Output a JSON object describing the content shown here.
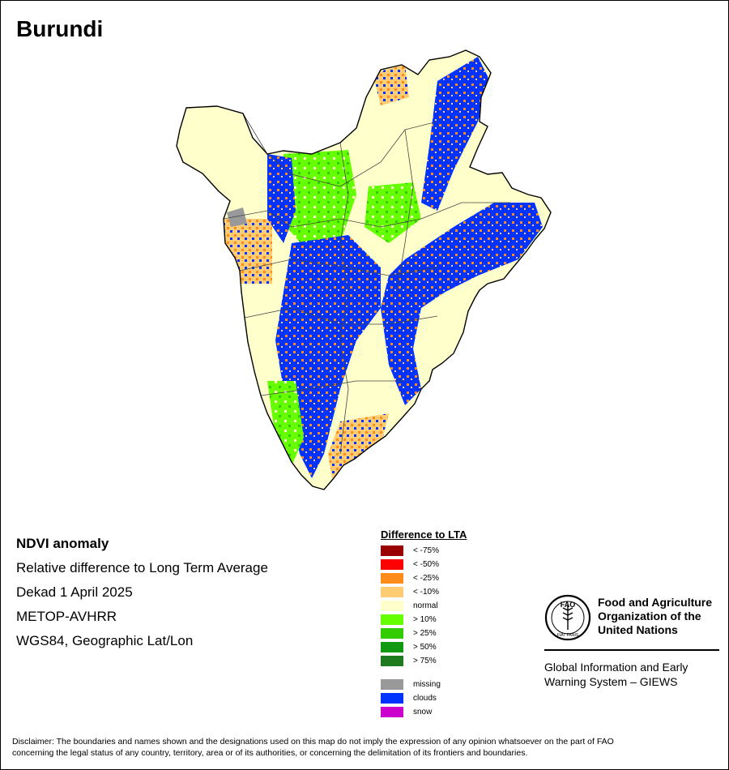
{
  "title": "Burundi",
  "info": {
    "line1": "NDVI anomaly",
    "line2": "Relative difference to Long Term Average",
    "line3": "Dekad 1 April 2025",
    "line4": "METOP-AVHRR",
    "line5": "WGS84, Geographic Lat/Lon"
  },
  "legend": {
    "title": "Difference to LTA",
    "items": [
      {
        "label": "< -75%",
        "color": "#990000"
      },
      {
        "label": "< -50%",
        "color": "#ff0000"
      },
      {
        "label": "< -25%",
        "color": "#ff8c1a"
      },
      {
        "label": "< -10%",
        "color": "#ffcc73"
      },
      {
        "label": "normal",
        "color": "#ffffcc"
      },
      {
        "label": "> 10%",
        "color": "#66ff00"
      },
      {
        "label": "> 25%",
        "color": "#33cc00"
      },
      {
        "label": "> 50%",
        "color": "#119911"
      },
      {
        "label": "> 75%",
        "color": "#1e7a1e"
      }
    ],
    "extra": [
      {
        "label": "missing",
        "color": "#999999"
      },
      {
        "label": "clouds",
        "color": "#0033ff"
      },
      {
        "label": "snow",
        "color": "#cc00cc"
      }
    ]
  },
  "org": {
    "name_line1": "Food and Agriculture",
    "name_line2": "Organization of the",
    "name_line3": "United Nations",
    "logo_text": "FAO",
    "logo_motto": "FIAT PANIS",
    "system_line1": "Global Information and Early",
    "system_line2": "Warning System – GIEWS"
  },
  "disclaimer_line1": "Disclaimer: The boundaries and names shown and the designations used on this map do not imply the expression of any opinion whatsoever on the part of FAO",
  "disclaimer_line2": "concerning the legal status of any country, territory, area or of its authorities, or concerning the delimitation of its frontiers and boundaries."
}
